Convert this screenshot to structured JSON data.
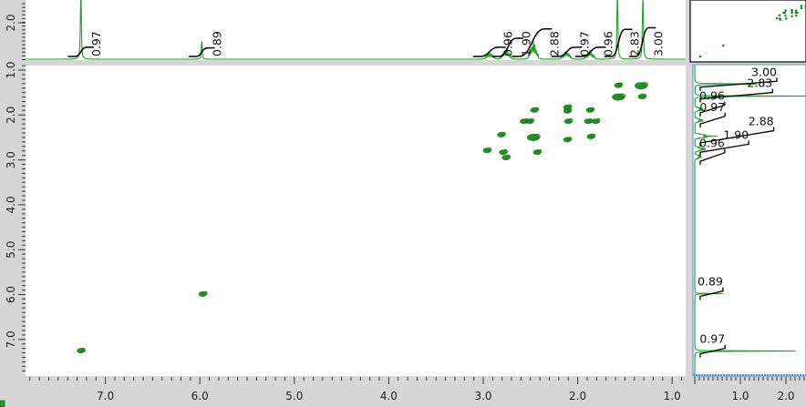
{
  "colors": {
    "contour": "#128012",
    "spectrum": "#2a9a2a",
    "background": "#d6d6d6",
    "panel": "#ffffff",
    "integral": "#000000",
    "selection_border": "#4a90e2"
  },
  "chart_data": {
    "type": "heatmap",
    "description_type": "2D NMR COSY contour plot with 1D projections",
    "x_axis": {
      "range": [
        7.85,
        0.86
      ],
      "reversed": true,
      "tick_labels": [
        "7.0",
        "6.0",
        "5.0",
        "4.0",
        "3.0",
        "2.0",
        "1.0"
      ],
      "ticks": [
        7,
        6,
        5,
        4,
        3,
        2,
        1
      ]
    },
    "y_axis": {
      "range": [
        0.86,
        7.82
      ],
      "reversed": false,
      "tick_labels": [
        "1.0",
        "2.0",
        "3.0",
        "4.0",
        "5.0",
        "6.0",
        "7.0"
      ],
      "ticks": [
        1,
        2,
        3,
        4,
        5,
        6,
        7
      ]
    },
    "top_spectrum": {
      "intensity_tick_labels": [
        "2.0"
      ],
      "intensity_ticks": [
        2.0
      ],
      "peaks": [
        {
          "ppm": 7.26,
          "intensity": 3.0,
          "shape": "singlet"
        },
        {
          "ppm": 5.98,
          "intensity": 0.62,
          "shape": "singlet"
        },
        {
          "ppm": 2.93,
          "intensity": 0.18,
          "shape": "multiplet"
        },
        {
          "ppm": 2.76,
          "intensity": 0.28,
          "shape": "multiplet"
        },
        {
          "ppm": 2.47,
          "intensity": 0.45,
          "shape": "multiplet"
        },
        {
          "ppm": 2.12,
          "intensity": 0.22,
          "shape": "multiplet"
        },
        {
          "ppm": 1.87,
          "intensity": 0.22,
          "shape": "multiplet"
        },
        {
          "ppm": 1.58,
          "intensity": 3.0,
          "shape": "singlet"
        },
        {
          "ppm": 1.31,
          "intensity": 3.0,
          "shape": "singlet"
        }
      ]
    },
    "integrals": [
      {
        "value": "0.97",
        "from": 7.32,
        "to": 7.2
      },
      {
        "value": "0.89",
        "from": 6.04,
        "to": 5.92
      },
      {
        "value": "0.96",
        "from": 3.03,
        "to": 2.84
      },
      {
        "value": "1.90",
        "from": 2.83,
        "to": 2.65
      },
      {
        "value": "2.88",
        "from": 2.62,
        "to": 2.35
      },
      {
        "value": "0.97",
        "from": 2.2,
        "to": 2.03
      },
      {
        "value": "0.96",
        "from": 1.95,
        "to": 1.78
      },
      {
        "value": "2.83",
        "from": 1.64,
        "to": 1.5
      },
      {
        "value": "3.00",
        "from": 1.38,
        "to": 1.25
      }
    ],
    "cross_peaks": [
      {
        "x": 1.33,
        "y": 1.35,
        "strong": true
      },
      {
        "x": 1.57,
        "y": 1.6,
        "strong": true
      },
      {
        "x": 1.57,
        "y": 1.34,
        "strong": false
      },
      {
        "x": 1.32,
        "y": 1.59,
        "strong": false
      },
      {
        "x": 2.46,
        "y": 1.89,
        "strong": false
      },
      {
        "x": 2.11,
        "y": 1.83,
        "strong": false
      },
      {
        "x": 2.11,
        "y": 1.91,
        "strong": false
      },
      {
        "x": 1.87,
        "y": 1.89,
        "strong": false
      },
      {
        "x": 2.57,
        "y": 2.14,
        "strong": false
      },
      {
        "x": 2.51,
        "y": 2.14,
        "strong": false
      },
      {
        "x": 2.1,
        "y": 2.14,
        "strong": false
      },
      {
        "x": 1.89,
        "y": 2.14,
        "strong": false
      },
      {
        "x": 1.81,
        "y": 2.14,
        "strong": false
      },
      {
        "x": 2.81,
        "y": 2.44,
        "strong": false
      },
      {
        "x": 2.47,
        "y": 2.5,
        "strong": true
      },
      {
        "x": 2.11,
        "y": 2.55,
        "strong": false
      },
      {
        "x": 1.86,
        "y": 2.48,
        "strong": false
      },
      {
        "x": 2.79,
        "y": 2.83,
        "strong": false
      },
      {
        "x": 2.96,
        "y": 2.79,
        "strong": false
      },
      {
        "x": 2.43,
        "y": 2.83,
        "strong": false
      },
      {
        "x": 2.76,
        "y": 2.95,
        "strong": false
      },
      {
        "x": 5.97,
        "y": 5.99,
        "strong": false
      },
      {
        "x": 7.26,
        "y": 7.25,
        "strong": false
      }
    ],
    "side_projection": {
      "axis_tick_labels": [
        "1.0",
        "2.0"
      ],
      "axis_ticks": [
        1.0,
        2.0
      ]
    }
  }
}
